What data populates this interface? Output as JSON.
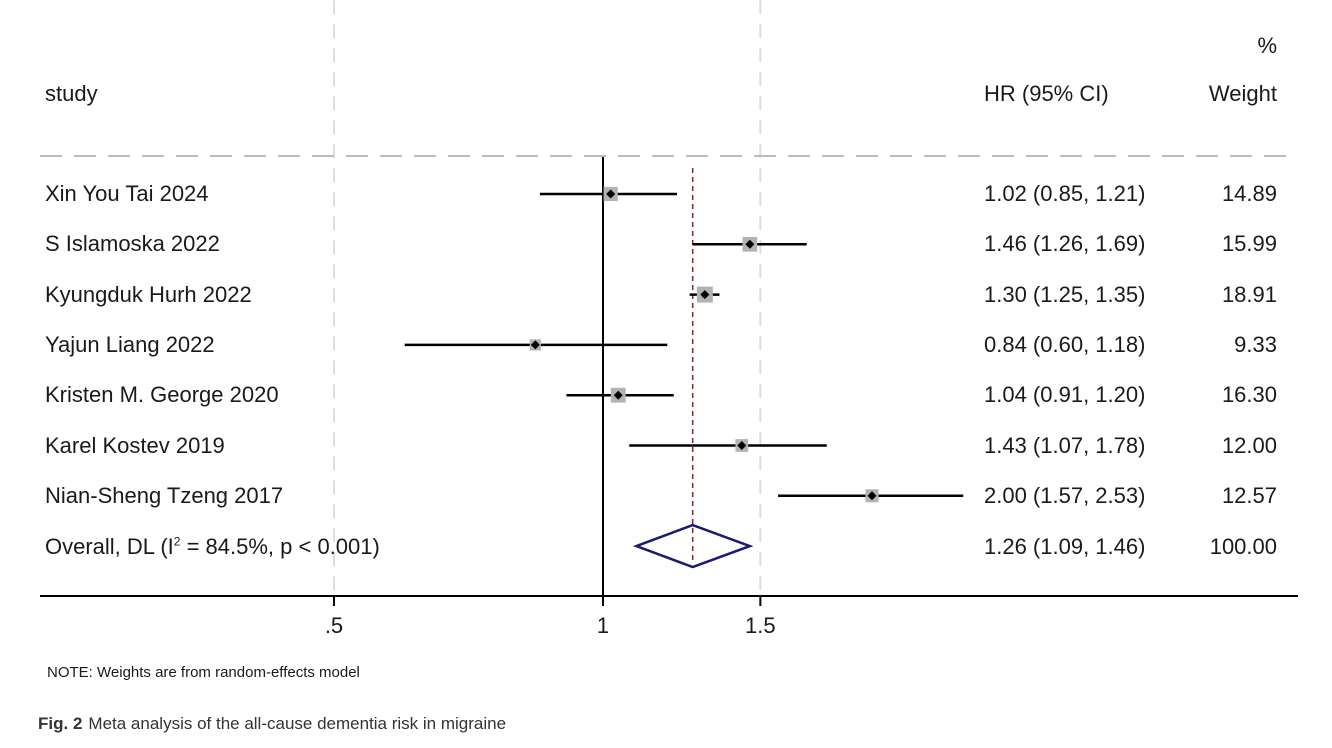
{
  "chart_data": {
    "type": "forest",
    "scale": "log",
    "headers": {
      "study": "study",
      "effect": "HR (95% CI)",
      "weight_pct": "%",
      "weight": "Weight"
    },
    "studies": [
      {
        "name": "Xin You Tai 2024",
        "hr": 1.02,
        "lo": 0.85,
        "hi": 1.21,
        "ci_text": "1.02 (0.85, 1.21)",
        "weight": "14.89",
        "weight_value": 14.89
      },
      {
        "name": "S Islamoska 2022",
        "hr": 1.46,
        "lo": 1.26,
        "hi": 1.69,
        "ci_text": "1.46 (1.26, 1.69)",
        "weight": "15.99",
        "weight_value": 15.99
      },
      {
        "name": "Kyungduk Hurh 2022",
        "hr": 1.3,
        "lo": 1.25,
        "hi": 1.35,
        "ci_text": "1.30 (1.25, 1.35)",
        "weight": "18.91",
        "weight_value": 18.91
      },
      {
        "name": "Yajun Liang 2022",
        "hr": 0.84,
        "lo": 0.6,
        "hi": 1.18,
        "ci_text": "0.84 (0.60, 1.18)",
        "weight": "9.33",
        "weight_value": 9.33
      },
      {
        "name": "Kristen M. George 2020",
        "hr": 1.04,
        "lo": 0.91,
        "hi": 1.2,
        "ci_text": "1.04 (0.91, 1.20)",
        "weight": "16.30",
        "weight_value": 16.3
      },
      {
        "name": "Karel Kostev 2019",
        "hr": 1.43,
        "lo": 1.07,
        "hi": 1.78,
        "ci_text": "1.43 (1.07, 1.78)",
        "weight": "12.00",
        "weight_value": 12.0
      },
      {
        "name": "Nian-Sheng Tzeng 2017",
        "hr": 2.0,
        "lo": 1.57,
        "hi": 2.53,
        "ci_text": "2.00 (1.57, 2.53)",
        "weight": "12.57",
        "weight_value": 12.57
      }
    ],
    "overall": {
      "label_pre": "Overall, DL (I",
      "label_sup": "2",
      "label_post": " = 84.5%, p < 0.001)",
      "hr": 1.26,
      "lo": 1.09,
      "hi": 1.46,
      "ci_text": "1.26 (1.09, 1.46)",
      "weight": "100.00"
    },
    "x_ticks": [
      {
        "value": 0.5,
        "label": ".5"
      },
      {
        "value": 1,
        "label": "1"
      },
      {
        "value": 1.5,
        "label": "1.5"
      }
    ],
    "null_line": 1,
    "colors": {
      "ci_line": "#000000",
      "box": "#b3b3b3",
      "point": "#000000",
      "diamond": "#1a1a73",
      "overall_line": "#8b2323",
      "grid": "#dddddd",
      "separator": "#bbbbbb"
    }
  },
  "note": "NOTE: Weights are from random-effects model",
  "caption": {
    "label": "Fig. 2",
    "text": "Meta analysis of the all-cause dementia risk in migraine"
  }
}
